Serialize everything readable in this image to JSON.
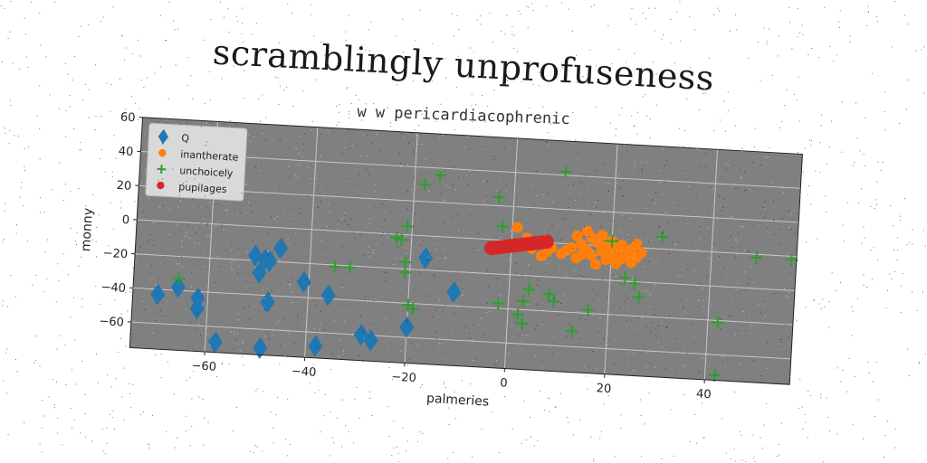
{
  "chart_data": {
    "type": "scatter",
    "title": "scramblingly unprofuseness",
    "subtitle": "w w pericardiacophrenic",
    "xlabel": "palmeries",
    "ylabel": "monny",
    "xlim": [
      -75,
      57
    ],
    "ylim": [
      -75,
      60
    ],
    "xticks": [
      -60,
      -40,
      -20,
      0,
      20,
      40
    ],
    "yticks": [
      -60,
      -40,
      -20,
      0,
      20,
      40,
      60
    ],
    "grid": true,
    "legend_position": "top-left",
    "background_color": "#808080",
    "series": [
      {
        "name": "Q",
        "marker": "diamond",
        "color": "#1f77b4",
        "points": [
          [
            -70,
            -43
          ],
          [
            -66,
            -38
          ],
          [
            -62,
            -44
          ],
          [
            -62,
            -50
          ],
          [
            -58,
            -69
          ],
          [
            -49,
            -71
          ],
          [
            -48,
            -44
          ],
          [
            -50,
            -27
          ],
          [
            -51,
            -17
          ],
          [
            -49,
            -19
          ],
          [
            -46,
            -12
          ],
          [
            -48,
            -20
          ],
          [
            -41,
            -31
          ],
          [
            -38,
            -68
          ],
          [
            -36,
            -38
          ],
          [
            -29,
            -60
          ],
          [
            -27,
            -63
          ],
          [
            -20,
            -54
          ],
          [
            -17,
            -13
          ],
          [
            -11,
            -32
          ]
        ]
      },
      {
        "name": "inantherate",
        "marker": "circle",
        "color": "#ff7f0e",
        "points": [
          [
            1,
            8
          ],
          [
            3,
            2
          ],
          [
            4,
            -4
          ],
          [
            6,
            -8
          ],
          [
            7,
            -6
          ],
          [
            8,
            -3
          ],
          [
            10,
            -6
          ],
          [
            11,
            -4
          ],
          [
            12,
            -2
          ],
          [
            13,
            5
          ],
          [
            13,
            -8
          ],
          [
            14,
            0
          ],
          [
            15,
            8
          ],
          [
            15,
            -3
          ],
          [
            16,
            4
          ],
          [
            16,
            -6
          ],
          [
            17,
            -11
          ],
          [
            17,
            2
          ],
          [
            18,
            -3
          ],
          [
            18,
            6
          ],
          [
            19,
            -8
          ],
          [
            19,
            0
          ],
          [
            20,
            -5
          ],
          [
            20,
            3
          ],
          [
            21,
            -10
          ],
          [
            21,
            -2
          ],
          [
            22,
            1
          ],
          [
            22,
            -7
          ],
          [
            23,
            -4
          ],
          [
            24,
            -1
          ],
          [
            24,
            -9
          ],
          [
            25,
            2
          ],
          [
            25,
            -6
          ],
          [
            26,
            -3
          ],
          [
            14,
            -6
          ]
        ]
      },
      {
        "name": "unchoicely",
        "marker": "plus",
        "color": "#2ca02c",
        "points": [
          [
            -66,
            -33
          ],
          [
            -35,
            -21
          ],
          [
            -32,
            -21
          ],
          [
            -23,
            -2
          ],
          [
            -22,
            -3
          ],
          [
            -21,
            5
          ],
          [
            -21,
            -16
          ],
          [
            -21,
            -22
          ],
          [
            -20,
            -41
          ],
          [
            -19,
            -43
          ],
          [
            -18,
            30
          ],
          [
            -15,
            36
          ],
          [
            -3,
            25
          ],
          [
            -2,
            8
          ],
          [
            -2,
            -37
          ],
          [
            2,
            -43
          ],
          [
            3,
            -35
          ],
          [
            3,
            -48
          ],
          [
            4,
            -28
          ],
          [
            8,
            -30
          ],
          [
            9,
            -34
          ],
          [
            10,
            42
          ],
          [
            13,
            -51
          ],
          [
            16,
            -38
          ],
          [
            20,
            3
          ],
          [
            23,
            -18
          ],
          [
            25,
            -21
          ],
          [
            26,
            -29
          ],
          [
            30,
            7
          ],
          [
            42,
            -41
          ],
          [
            42,
            -72
          ],
          [
            49,
            -2
          ],
          [
            56,
            -2
          ]
        ]
      },
      {
        "name": "pupilages",
        "marker": "circle",
        "color": "#d62728",
        "points": [
          [
            -4,
            -5
          ],
          [
            -3,
            -4.5
          ],
          [
            -2,
            -4
          ],
          [
            -1,
            -3.5
          ],
          [
            0,
            -3
          ],
          [
            1,
            -2.5
          ],
          [
            2,
            -2
          ],
          [
            3,
            -1.5
          ],
          [
            4,
            -1
          ],
          [
            5,
            -0.5
          ],
          [
            6,
            0
          ],
          [
            7,
            0.5
          ]
        ]
      }
    ]
  }
}
